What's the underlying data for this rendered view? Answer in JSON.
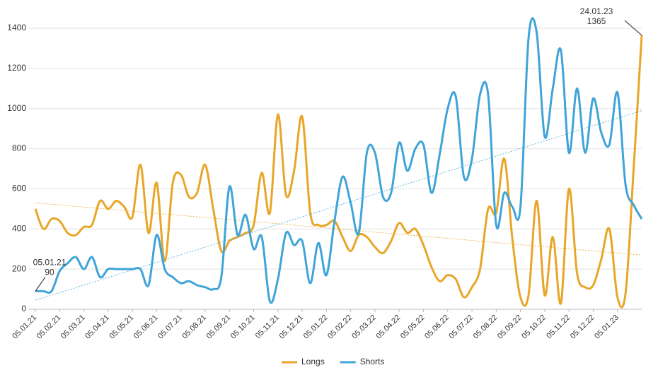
{
  "chart_data": {
    "type": "line",
    "categories": [
      "05.01.21",
      null,
      null,
      "05.02.21",
      null,
      null,
      "05.03.21",
      null,
      null,
      "05.04.21",
      null,
      null,
      "05.05.21",
      null,
      null,
      "05.06.21",
      null,
      null,
      "05.07.21",
      null,
      null,
      "05.08.21",
      null,
      null,
      "05.09.21",
      null,
      null,
      "05.10.21",
      null,
      null,
      "05.11.21",
      null,
      null,
      "05.12.21",
      null,
      null,
      "05.01.22",
      null,
      null,
      "05.02.22",
      null,
      null,
      "05.03.22",
      null,
      null,
      "05.04.22",
      null,
      null,
      "05.05.22",
      null,
      null,
      "05.06.22",
      null,
      null,
      "05.07.22",
      null,
      null,
      "05.08.22",
      null,
      null,
      "05.09.22",
      null,
      null,
      "05.10.22",
      null,
      null,
      "05.11.22",
      null,
      null,
      "05.12.22",
      null,
      null,
      "05.01.23",
      null,
      null,
      null
    ],
    "series": [
      {
        "name": "Longs",
        "color": "#e8a628",
        "trend": [
          530,
          270
        ],
        "values": [
          500,
          400,
          450,
          440,
          380,
          370,
          410,
          420,
          540,
          500,
          540,
          510,
          460,
          720,
          380,
          630,
          240,
          630,
          670,
          560,
          580,
          720,
          500,
          290,
          340,
          360,
          380,
          420,
          680,
          480,
          970,
          570,
          690,
          960,
          480,
          420,
          420,
          440,
          360,
          290,
          370,
          360,
          310,
          280,
          340,
          430,
          380,
          400,
          320,
          210,
          140,
          170,
          150,
          60,
          110,
          200,
          500,
          480,
          750,
          350,
          60,
          70,
          540,
          70,
          360,
          30,
          600,
          180,
          110,
          120,
          250,
          400,
          60,
          80,
          700,
          1365
        ]
      },
      {
        "name": "Shorts",
        "color": "#3fa4d8",
        "trend": [
          45,
          990
        ],
        "values": [
          90,
          90,
          90,
          190,
          230,
          260,
          200,
          260,
          160,
          200,
          200,
          200,
          200,
          200,
          120,
          370,
          200,
          160,
          130,
          140,
          120,
          110,
          100,
          160,
          610,
          370,
          470,
          300,
          360,
          40,
          150,
          380,
          320,
          340,
          130,
          330,
          170,
          440,
          660,
          530,
          380,
          780,
          780,
          560,
          580,
          830,
          690,
          800,
          820,
          580,
          770,
          1000,
          1060,
          660,
          750,
          1070,
          1070,
          420,
          580,
          510,
          510,
          1350,
          1380,
          860,
          1100,
          1290,
          780,
          1100,
          780,
          1050,
          880,
          820,
          1080,
          620,
          520,
          450
        ]
      }
    ],
    "annotations": [
      {
        "series": 1,
        "index": 0,
        "lines": [
          "05.01.21",
          "90"
        ]
      },
      {
        "series": 0,
        "index": 75,
        "lines": [
          "24.01.23",
          "1365"
        ]
      }
    ],
    "ylim": [
      0,
      1400
    ],
    "yticks": [
      0,
      200,
      400,
      600,
      800,
      1000,
      1200,
      1400
    ],
    "grid": true,
    "legend": "bottom"
  }
}
